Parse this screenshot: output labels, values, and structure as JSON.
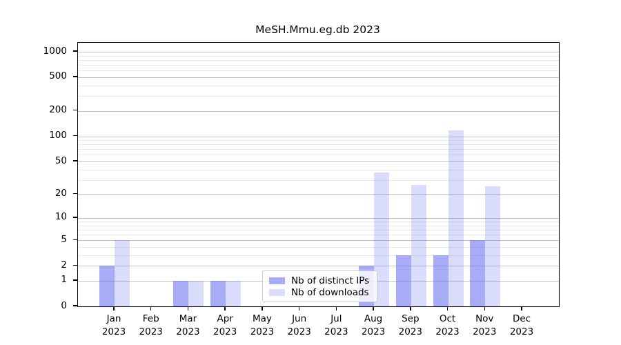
{
  "title": "MeSH.Mmu.eg.db 2023",
  "colors": {
    "ips": "rgba(102,107,238,0.57)",
    "downloads": "rgba(102,107,238,0.24)",
    "grid_major": "#bfbfbf",
    "grid_minor": "#e8e8e8",
    "axis": "#000000",
    "legend_border": "#cccccc"
  },
  "legend": {
    "items": [
      {
        "label": "Nb of distinct IPs",
        "series_key": "ips"
      },
      {
        "label": "Nb of downloads",
        "series_key": "downloads"
      }
    ],
    "position": "lower center"
  },
  "chart_data": {
    "type": "bar",
    "title": "MeSH.Mmu.eg.db 2023",
    "categories": [
      {
        "month": "Jan",
        "year": "2023"
      },
      {
        "month": "Feb",
        "year": "2023"
      },
      {
        "month": "Mar",
        "year": "2023"
      },
      {
        "month": "Apr",
        "year": "2023"
      },
      {
        "month": "May",
        "year": "2023"
      },
      {
        "month": "Jun",
        "year": "2023"
      },
      {
        "month": "Jul",
        "year": "2023"
      },
      {
        "month": "Aug",
        "year": "2023"
      },
      {
        "month": "Sep",
        "year": "2023"
      },
      {
        "month": "Oct",
        "year": "2023"
      },
      {
        "month": "Nov",
        "year": "2023"
      },
      {
        "month": "Dec",
        "year": "2023"
      }
    ],
    "series": [
      {
        "name": "Nb of distinct IPs",
        "key": "ips",
        "values": [
          2,
          0,
          1,
          1,
          0,
          0,
          0,
          2,
          3,
          3,
          5,
          0
        ]
      },
      {
        "name": "Nb of downloads",
        "key": "downloads",
        "values": [
          5,
          0,
          1,
          1,
          0,
          0,
          0,
          37,
          26,
          118,
          25,
          0
        ]
      }
    ],
    "xlabel": "",
    "ylabel": "",
    "yscale": "log10(1+x)",
    "ylim": [
      0,
      1276
    ],
    "y_major_ticks": [
      0,
      1,
      2,
      5,
      10,
      20,
      50,
      100,
      200,
      500,
      1000
    ],
    "y_minor_ticks": [
      3,
      4,
      6,
      7,
      8,
      9,
      30,
      40,
      60,
      70,
      80,
      90,
      300,
      400,
      600,
      700,
      800,
      900
    ],
    "grid": true,
    "legend_position": "lower center"
  }
}
